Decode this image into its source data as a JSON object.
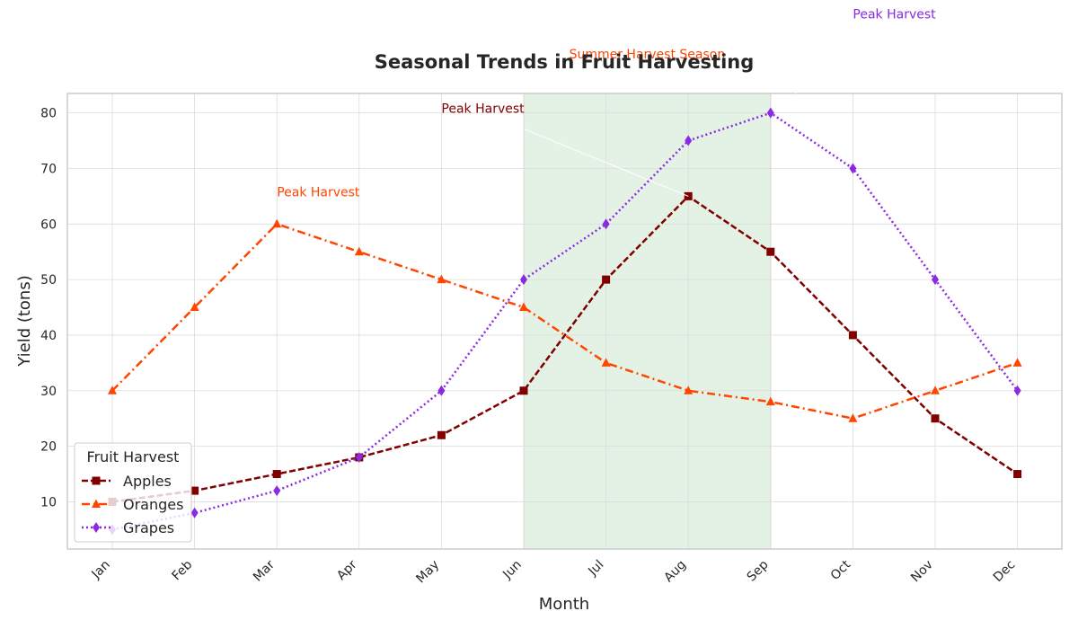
{
  "chart_data": {
    "type": "line",
    "title": "Seasonal Trends in Fruit Harvesting",
    "xlabel": "Month",
    "ylabel": "Yield (tons)",
    "categories": [
      "Jan",
      "Feb",
      "Mar",
      "Apr",
      "May",
      "Jun",
      "Jul",
      "Aug",
      "Sep",
      "Oct",
      "Nov",
      "Dec"
    ],
    "ylim": [
      1.5,
      83.5
    ],
    "yticks": [
      10,
      20,
      30,
      40,
      50,
      60,
      70,
      80
    ],
    "grid": true,
    "legend": {
      "title": "Fruit Harvest",
      "placement": "lower-left"
    },
    "series": [
      {
        "name": "Apples",
        "values": [
          10,
          12,
          15,
          18,
          22,
          30,
          50,
          65,
          55,
          40,
          25,
          15
        ],
        "color": "#800000",
        "marker": "square",
        "line_style": "dashed"
      },
      {
        "name": "Oranges",
        "values": [
          30,
          45,
          60,
          55,
          50,
          45,
          35,
          30,
          28,
          25,
          30,
          35
        ],
        "color": "#ff4500",
        "marker": "triangle",
        "line_style": "dash-dot"
      },
      {
        "name": "Grapes",
        "values": [
          5,
          8,
          12,
          18,
          30,
          50,
          60,
          75,
          80,
          70,
          50,
          30
        ],
        "color": "#8a2be2",
        "marker": "diamond",
        "line_style": "dotted"
      }
    ],
    "highlight_region": {
      "from": "Jun",
      "to": "Sep",
      "label": "Summer Harvest Season",
      "color": "#c8e6c9"
    },
    "annotations": [
      {
        "text": "Peak Harvest",
        "series": "Apples",
        "point": [
          "Aug",
          65
        ],
        "text_at": [
          "May",
          80
        ],
        "color": "#800000"
      },
      {
        "text": "Peak Harvest",
        "series": "Oranges",
        "point": [
          "Mar",
          60
        ],
        "text_at": [
          "Mar",
          65
        ],
        "color": "#ff4500"
      },
      {
        "text": "Peak Harvest",
        "series": "Grapes",
        "point": [
          "Sep",
          80
        ],
        "text_at": [
          "Oct",
          97
        ],
        "color": "#8a2be2"
      }
    ]
  }
}
